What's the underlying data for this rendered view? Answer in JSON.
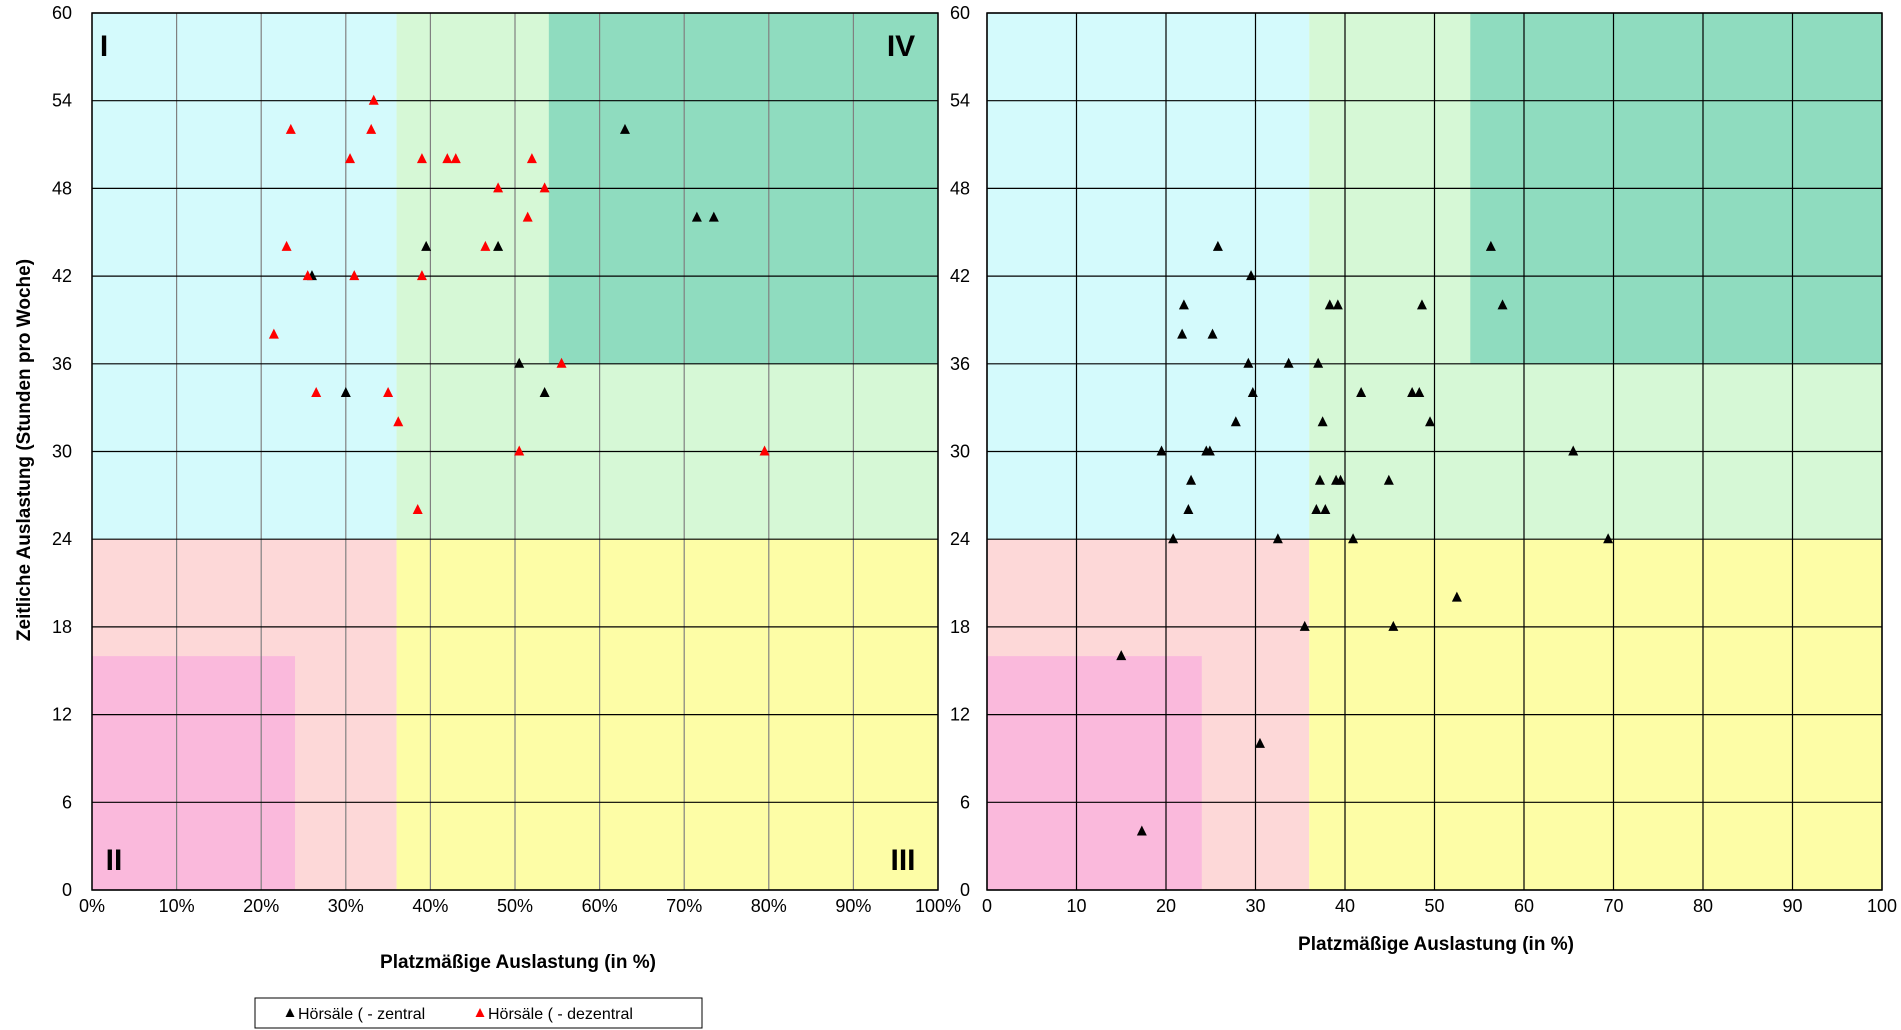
{
  "chart_data": [
    {
      "type": "scatter",
      "xlabel": "Platzmäßige Auslastung (in %)",
      "ylabel": "Zeitliche Auslastung (Stunden pro Woche)",
      "xlim": [
        0,
        100
      ],
      "ylim": [
        0,
        60
      ],
      "x_ticks": [
        "0%",
        "10%",
        "20%",
        "30%",
        "40%",
        "50%",
        "60%",
        "70%",
        "80%",
        "90%",
        "100%"
      ],
      "y_ticks": [
        "0",
        "6",
        "12",
        "18",
        "24",
        "30",
        "36",
        "42",
        "48",
        "54",
        "60"
      ],
      "grid": true,
      "quadrant_labels": [
        "I",
        "II",
        "III",
        "IV"
      ],
      "zones": [
        {
          "x": [
            0,
            36
          ],
          "y": [
            24,
            60
          ],
          "color": "#d4fafc"
        },
        {
          "x": [
            36,
            100
          ],
          "y": [
            24,
            60
          ],
          "color": "#d6f8d6"
        },
        {
          "x": [
            54,
            100
          ],
          "y": [
            36,
            60
          ],
          "color": "#8fdcbf"
        },
        {
          "x": [
            0,
            36
          ],
          "y": [
            0,
            24
          ],
          "color": "#fdd8d8"
        },
        {
          "x": [
            0,
            24
          ],
          "y": [
            0,
            16
          ],
          "color": "#fab9dc"
        },
        {
          "x": [
            36,
            100
          ],
          "y": [
            0,
            24
          ],
          "color": "#fdfda6"
        }
      ],
      "series": [
        {
          "name": "Hörsäle ( - zentral",
          "color": "#000000",
          "points": [
            [
              26,
              42
            ],
            [
              30,
              34
            ],
            [
              39.5,
              44
            ],
            [
              48,
              44
            ],
            [
              50.5,
              36
            ],
            [
              53.5,
              34
            ],
            [
              63,
              52
            ],
            [
              71.5,
              46
            ],
            [
              73.5,
              46
            ]
          ]
        },
        {
          "name": "Hörsäle ( - dezentral",
          "color": "#ff0000",
          "points": [
            [
              21.5,
              38
            ],
            [
              23,
              44
            ],
            [
              23.5,
              52
            ],
            [
              25.5,
              42
            ],
            [
              26.5,
              34
            ],
            [
              30.5,
              50
            ],
            [
              31,
              42
            ],
            [
              33,
              52
            ],
            [
              33.3,
              54
            ],
            [
              35,
              34
            ],
            [
              36.2,
              32
            ],
            [
              38.5,
              26
            ],
            [
              39,
              42
            ],
            [
              39,
              50
            ],
            [
              42,
              50
            ],
            [
              43,
              50
            ],
            [
              46.5,
              44
            ],
            [
              48,
              48
            ],
            [
              50.5,
              30
            ],
            [
              51.5,
              46
            ],
            [
              52,
              50
            ],
            [
              53.5,
              48
            ],
            [
              55.5,
              36
            ],
            [
              79.5,
              30
            ]
          ]
        }
      ],
      "legend_position": "bottom-center"
    },
    {
      "type": "scatter",
      "xlabel": "Platzmäßige Auslastung (in %)",
      "ylabel": "",
      "xlim": [
        0,
        100
      ],
      "ylim": [
        0,
        60
      ],
      "x_ticks": [
        "0",
        "10",
        "20",
        "30",
        "40",
        "50",
        "60",
        "70",
        "80",
        "90",
        "100"
      ],
      "y_ticks": [
        "0",
        "6",
        "12",
        "18",
        "24",
        "30",
        "36",
        "42",
        "48",
        "54",
        "60"
      ],
      "grid": true,
      "zones": [
        {
          "x": [
            0,
            36
          ],
          "y": [
            24,
            60
          ],
          "color": "#d4fafc"
        },
        {
          "x": [
            36,
            100
          ],
          "y": [
            24,
            60
          ],
          "color": "#d6f8d6"
        },
        {
          "x": [
            54,
            100
          ],
          "y": [
            36,
            60
          ],
          "color": "#8fdcbf"
        },
        {
          "x": [
            0,
            36
          ],
          "y": [
            0,
            24
          ],
          "color": "#fdd8d8"
        },
        {
          "x": [
            0,
            24
          ],
          "y": [
            0,
            16
          ],
          "color": "#fab9dc"
        },
        {
          "x": [
            36,
            100
          ],
          "y": [
            0,
            24
          ],
          "color": "#fdfda6"
        }
      ],
      "series": [
        {
          "color": "#000000",
          "points": [
            [
              15,
              16
            ],
            [
              17.3,
              4
            ],
            [
              19.5,
              30
            ],
            [
              20.8,
              24
            ],
            [
              22,
              40
            ],
            [
              21.8,
              38
            ],
            [
              22.5,
              26
            ],
            [
              22.8,
              28
            ],
            [
              24.5,
              30
            ],
            [
              24.9,
              30
            ],
            [
              25.2,
              38
            ],
            [
              25.8,
              44
            ],
            [
              27.8,
              32
            ],
            [
              29.2,
              36
            ],
            [
              29.5,
              42
            ],
            [
              29.7,
              34
            ],
            [
              30.5,
              10
            ],
            [
              32.5,
              24
            ],
            [
              33.7,
              36
            ],
            [
              35.5,
              18
            ],
            [
              36.8,
              26
            ],
            [
              37,
              36
            ],
            [
              37.2,
              28
            ],
            [
              37.5,
              32
            ],
            [
              37.8,
              26
            ],
            [
              38.3,
              40
            ],
            [
              39,
              28
            ],
            [
              39.2,
              40
            ],
            [
              39.5,
              28
            ],
            [
              40.9,
              24
            ],
            [
              41.8,
              34
            ],
            [
              44.9,
              28
            ],
            [
              45.4,
              18
            ],
            [
              47.5,
              34
            ],
            [
              48.3,
              34
            ],
            [
              48.6,
              40
            ],
            [
              49.5,
              32
            ],
            [
              52.5,
              20
            ],
            [
              56.3,
              44
            ],
            [
              57.6,
              40
            ],
            [
              65.5,
              30
            ],
            [
              69.4,
              24
            ]
          ]
        }
      ]
    }
  ]
}
